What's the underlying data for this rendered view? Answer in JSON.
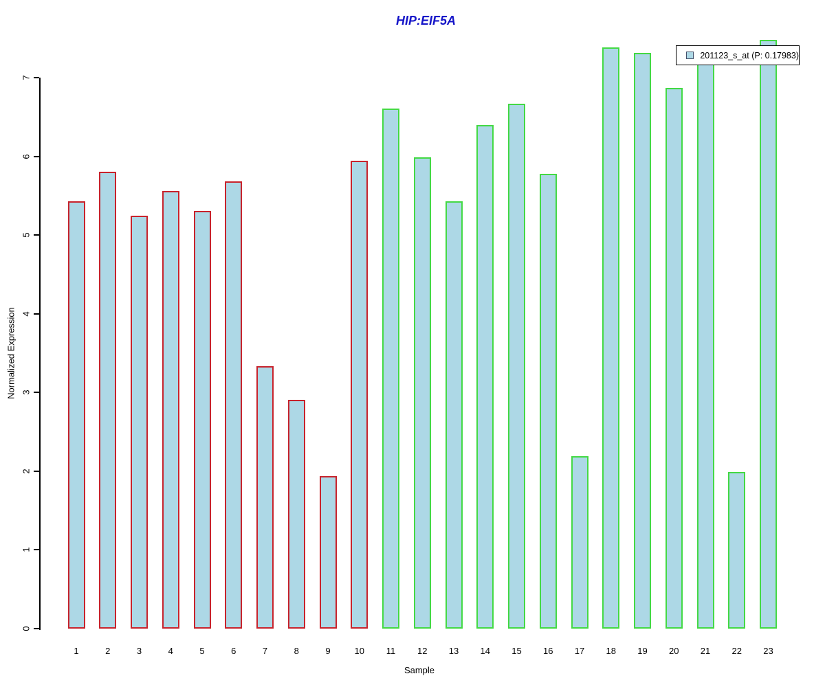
{
  "title": "HIP:EIF5A",
  "legend": {
    "label": "201123_s_at (P: 0.17983)"
  },
  "colors": {
    "title_blue": "#1515c8",
    "bar_fill": "#ADD8E6",
    "border_group1": "#c8232c",
    "border_group2": "#44d944",
    "axis": "#000000",
    "legend_border": "#000000",
    "legend_swatch_border": "#44506a"
  },
  "chart_data": {
    "type": "bar",
    "title": "HIP:EIF5A",
    "xlabel": "Sample",
    "ylabel": "Normalized Expression",
    "ylim": [
      0,
      7.5
    ],
    "yticks": [
      0,
      1,
      2,
      3,
      4,
      5,
      6,
      7
    ],
    "grid": false,
    "legend_position": "top-right",
    "categories": [
      "1",
      "2",
      "3",
      "4",
      "5",
      "6",
      "7",
      "8",
      "9",
      "10",
      "11",
      "12",
      "13",
      "14",
      "15",
      "16",
      "17",
      "18",
      "19",
      "20",
      "21",
      "22",
      "23"
    ],
    "series": [
      {
        "name": "201123_s_at (P: 0.17983)",
        "values": [
          5.43,
          5.8,
          5.25,
          5.56,
          5.31,
          5.68,
          3.33,
          2.91,
          1.94,
          5.94,
          6.61,
          5.99,
          5.43,
          6.4,
          6.67,
          5.78,
          2.19,
          7.38,
          7.31,
          6.87,
          7.2,
          1.99,
          7.48
        ],
        "fill": "#ADD8E6"
      }
    ],
    "bar_border_colors": [
      "#c8232c",
      "#c8232c",
      "#c8232c",
      "#c8232c",
      "#c8232c",
      "#c8232c",
      "#c8232c",
      "#c8232c",
      "#c8232c",
      "#c8232c",
      "#44d944",
      "#44d944",
      "#44d944",
      "#44d944",
      "#44d944",
      "#44d944",
      "#44d944",
      "#44d944",
      "#44d944",
      "#44d944",
      "#44d944",
      "#44d944",
      "#44d944"
    ],
    "group_note": "samples 1-10 red border, samples 11-23 green border"
  }
}
